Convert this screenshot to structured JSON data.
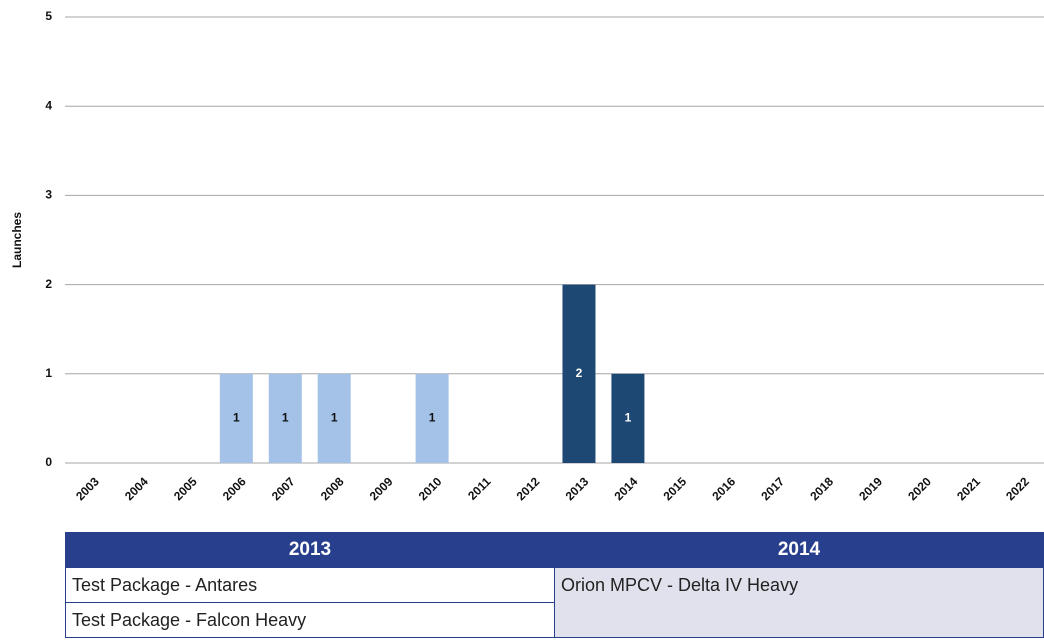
{
  "chart_data": {
    "type": "bar",
    "y_label": "Launches",
    "categories": [
      "2003",
      "2004",
      "2005",
      "2006",
      "2007",
      "2008",
      "2009",
      "2010",
      "2011",
      "2012",
      "2013",
      "2014",
      "2015",
      "2016",
      "2017",
      "2018",
      "2019",
      "2020",
      "2021",
      "2022"
    ],
    "values": [
      0,
      0,
      0,
      1,
      1,
      1,
      0,
      1,
      0,
      0,
      2,
      1,
      0,
      0,
      0,
      0,
      0,
      0,
      0,
      0
    ],
    "colors": [
      "#a4c2e8",
      "#a4c2e8",
      "#a4c2e8",
      "#a4c2e8",
      "#a4c2e8",
      "#a4c2e8",
      "#a4c2e8",
      "#a4c2e8",
      "#a4c2e8",
      "#a4c2e8",
      "#1d4873",
      "#1d4873",
      "#a4c2e8",
      "#a4c2e8",
      "#a4c2e8",
      "#a4c2e8",
      "#a4c2e8",
      "#a4c2e8",
      "#a4c2e8",
      "#a4c2e8"
    ],
    "ylim": [
      0,
      5
    ],
    "yticks": [
      0,
      1,
      2,
      3,
      4,
      5
    ],
    "grid": true
  },
  "table": {
    "headers": [
      "2013",
      "2014"
    ],
    "columns": [
      [
        "Test Package - Antares",
        "Test Package - Falcon Heavy"
      ],
      [
        "Orion MPCV - Delta IV Heavy"
      ]
    ]
  }
}
